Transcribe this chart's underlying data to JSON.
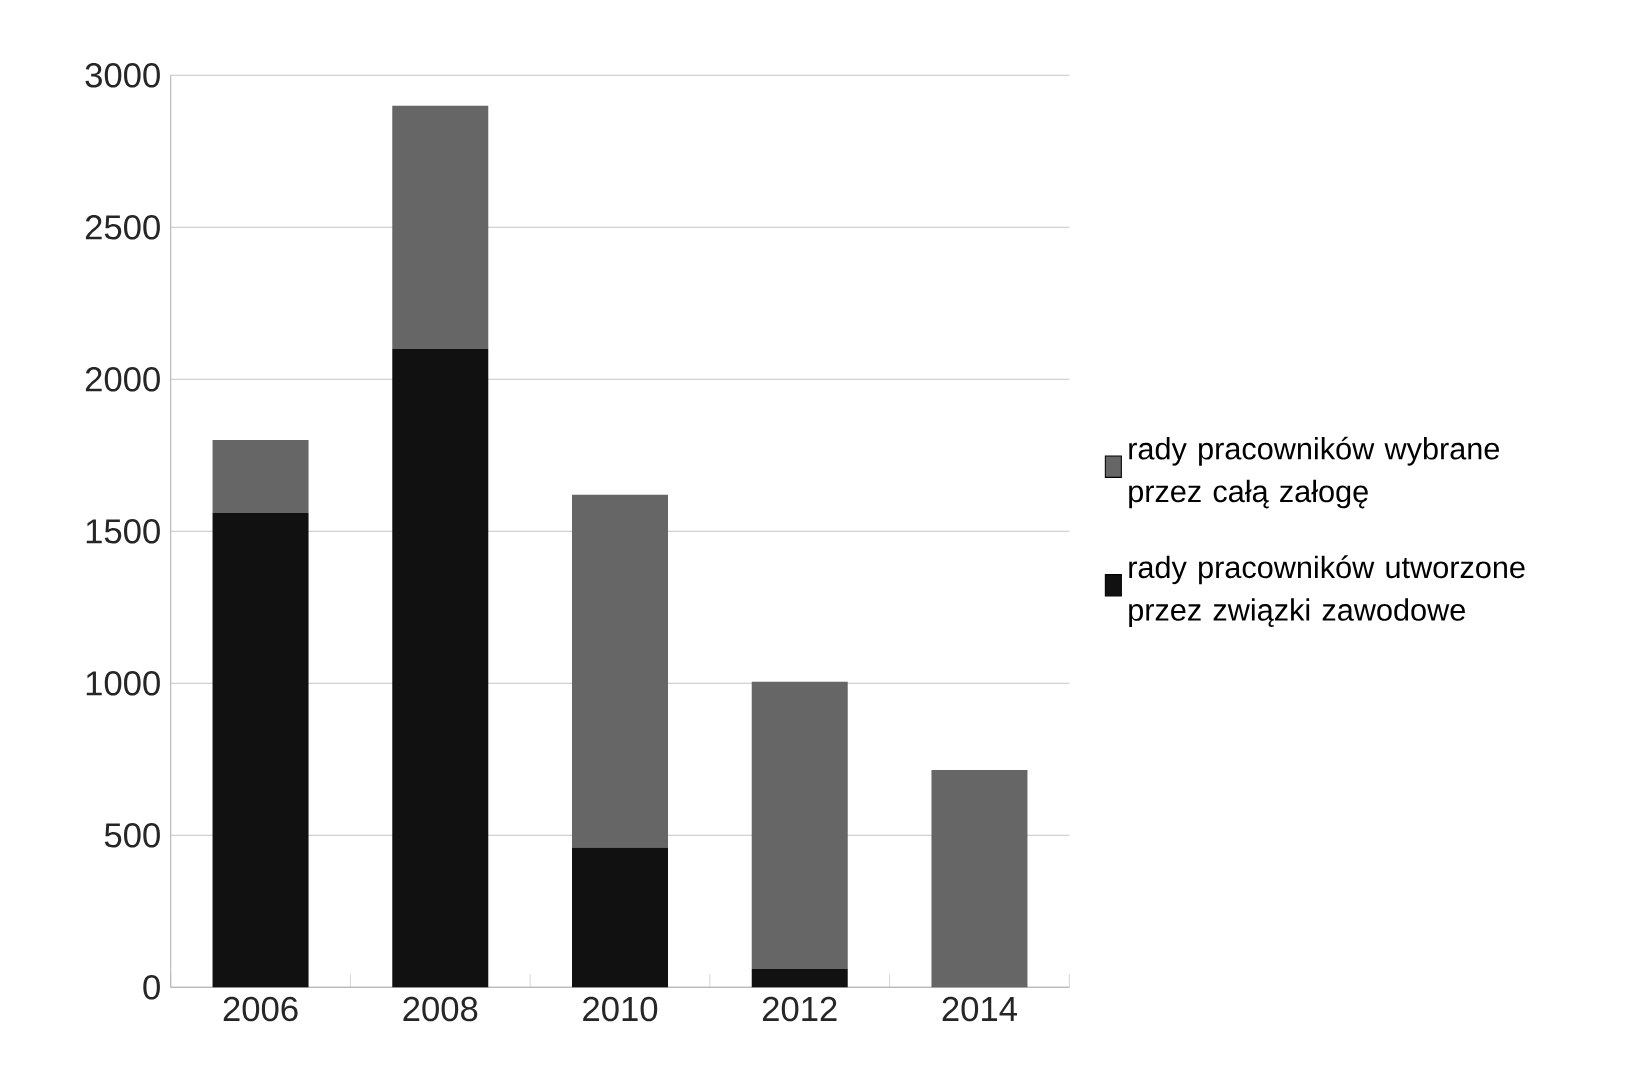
{
  "chart_data": {
    "type": "bar",
    "stacked": true,
    "categories": [
      "2006",
      "2008",
      "2010",
      "2012",
      "2014"
    ],
    "series": [
      {
        "name": "rady pracowników utworzone przez związki zawodowe",
        "color": "#111111",
        "values": [
          1560,
          2100,
          460,
          60,
          0
        ]
      },
      {
        "name": "rady pracowników wybrane przez całą załogę",
        "color": "#666666",
        "values": [
          240,
          800,
          1160,
          945,
          715
        ]
      }
    ],
    "ylim": [
      0,
      3000
    ],
    "yticks": [
      0,
      500,
      1000,
      1500,
      2000,
      2500,
      3000
    ],
    "grid": "y",
    "legend": "right"
  }
}
